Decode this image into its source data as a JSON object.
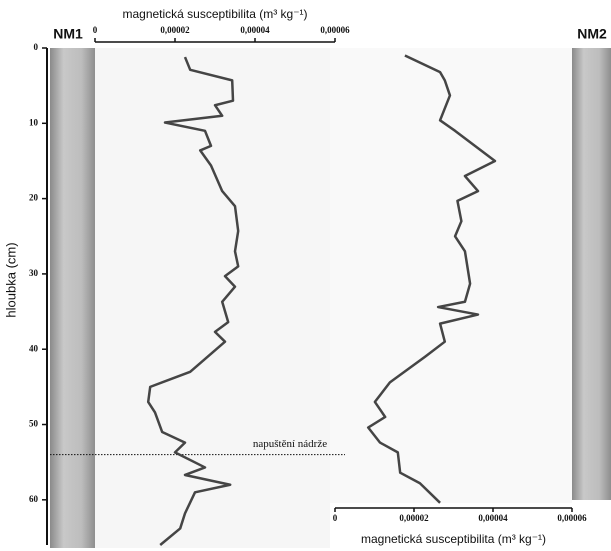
{
  "chart_data": [
    {
      "type": "line",
      "core_label": "NM1",
      "xlabel": "magnetická susceptibilita (m³ kg⁻¹)",
      "ylabel": "hloubka (cm)",
      "color": "#454545",
      "xlim": [
        0,
        6e-05
      ],
      "xticks": [
        0,
        {
          "value": 2e-05,
          "label": "0,00002"
        },
        {
          "value": 4e-05,
          "label": "0,00004"
        },
        {
          "value": 6e-05,
          "label": "0,00006"
        }
      ],
      "ylim": [
        0,
        66
      ],
      "yticks": [
        0,
        10,
        20,
        30,
        40,
        50,
        60
      ],
      "annotation": {
        "text": "napuštění nádrže",
        "depth": 54
      },
      "y": [
        1.2,
        2.9,
        4.3,
        7,
        7.6,
        9,
        9.9,
        11,
        13,
        13.6,
        15.6,
        19,
        21,
        24.3,
        27,
        29,
        30.3,
        31.7,
        33.7,
        36.4,
        37.7,
        39,
        43,
        45,
        47,
        48.4,
        51,
        52.4,
        53.7,
        55.7,
        56.7,
        58,
        59,
        61.8,
        63.8,
        66
      ],
      "values": [
        2.25e-05,
        2.38e-05,
        3.43e-05,
        3.45e-05,
        3e-05,
        3.18e-05,
        1.75e-05,
        2.75e-05,
        2.9e-05,
        2.63e-05,
        2.9e-05,
        3.18e-05,
        3.5e-05,
        3.58e-05,
        3.5e-05,
        3.58e-05,
        3.25e-05,
        3.5e-05,
        3.18e-05,
        3.33e-05,
        3e-05,
        3.25e-05,
        2.38e-05,
        1.38e-05,
        1.33e-05,
        1.5e-05,
        1.68e-05,
        2.25e-05,
        2e-05,
        2.75e-05,
        2.25e-05,
        3.38e-05,
        2.5e-05,
        2.25e-05,
        2.13e-05,
        1.63e-05
      ]
    },
    {
      "type": "line",
      "core_label": "NM2",
      "xlabel": "magnetická susceptibilita (m³ kg⁻¹)",
      "color": "#454545",
      "xlim": [
        0,
        6e-05
      ],
      "xticks": [
        0,
        {
          "value": 2e-05,
          "label": "0,00002"
        },
        {
          "value": 4e-05,
          "label": "0,00004"
        },
        {
          "value": 6e-05,
          "label": "0,00006"
        }
      ],
      "ylim": [
        0,
        66
      ],
      "y": [
        1,
        3.2,
        4.3,
        6.3,
        9.6,
        11,
        15,
        17,
        19,
        20.3,
        23,
        25,
        27,
        31.3,
        33.7,
        34.4,
        35.4,
        36.6,
        39,
        41,
        44.4,
        47,
        49,
        50.4,
        52.4,
        53.7,
        56.4,
        57.8,
        60.4
      ],
      "values": [
        1.77e-05,
        2.66e-05,
        2.78e-05,
        2.91e-05,
        2.66e-05,
        3.04e-05,
        4.05e-05,
        3.29e-05,
        3.62e-05,
        3.1e-05,
        3.2e-05,
        3.04e-05,
        3.29e-05,
        3.42e-05,
        3.29e-05,
        2.61e-05,
        3.62e-05,
        2.66e-05,
        2.78e-05,
        2.28e-05,
        1.39e-05,
        1.01e-05,
        1.27e-05,
        8.4e-06,
        1.14e-05,
        1.59e-05,
        1.65e-05,
        2.15e-05,
        2.66e-05
      ]
    }
  ]
}
